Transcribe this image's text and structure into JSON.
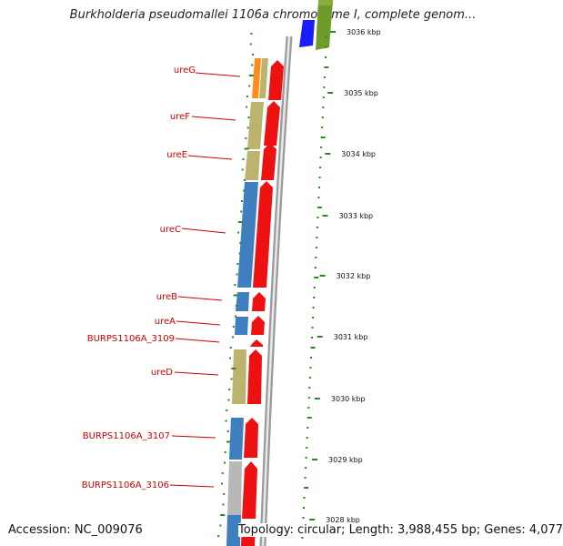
{
  "title": "Burkholderia pseudomallei 1106a chromosome I, complete genom...",
  "accession": "Accession: NC_009076",
  "topology": "Topology: circular; Length: 3,988,455 bp; Genes: 4,077",
  "colors": {
    "forward_gene": "#ee1111",
    "cds_tan": "#bcb46e",
    "cds_blue": "#3f7fbf",
    "cds_orange": "#ff8c1a",
    "cds_gray": "#b8b8b8",
    "gene_blue": "#1b1bff",
    "gene_green": "#6f9b2a",
    "label_red": "#cc0000",
    "tick_green": "#2b8a1f",
    "backbone": "#999999"
  },
  "scale_labels": [
    "3036 kbp",
    "3035 kbp",
    "3034 kbp",
    "3033 kbp",
    "3032 kbp",
    "3031 kbp",
    "3030 kbp",
    "3029 kbp",
    "3028 kbp"
  ],
  "gene_labels": [
    "ureG",
    "ureF",
    "ureE",
    "ureC",
    "ureB",
    "ureA",
    "BURPS1106A_3109",
    "ureD",
    "BURPS1106A_3107",
    "BURPS1106A_3106"
  ]
}
